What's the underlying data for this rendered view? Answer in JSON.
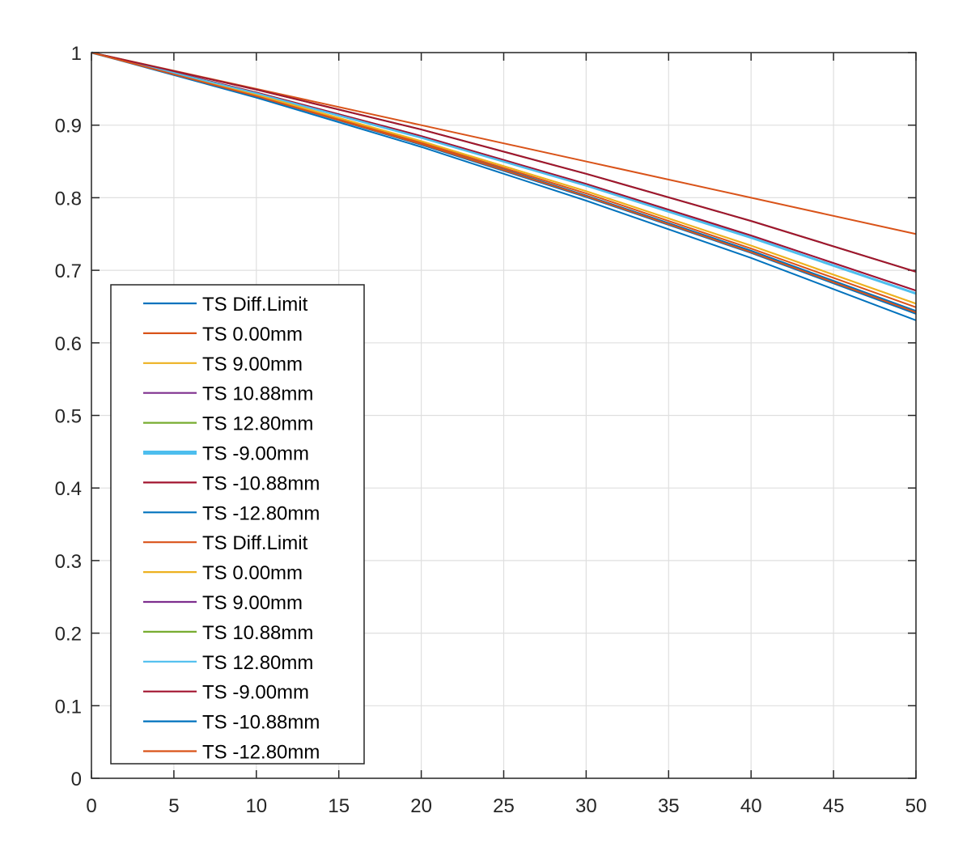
{
  "chart_data": {
    "type": "line",
    "title": "",
    "xlabel": "",
    "ylabel": "",
    "xlim": [
      0,
      50
    ],
    "ylim": [
      0,
      1
    ],
    "grid": true,
    "legend_placement": "bottom-left",
    "x_ticks": [
      "0",
      "5",
      "10",
      "15",
      "20",
      "25",
      "30",
      "35",
      "40",
      "45",
      "50"
    ],
    "y_ticks": [
      "0",
      "0.1",
      "0.2",
      "0.3",
      "0.4",
      "0.5",
      "0.6",
      "0.7",
      "0.8",
      "0.9",
      "1"
    ],
    "x": [
      0,
      10,
      20,
      30,
      40,
      50
    ],
    "series": [
      {
        "name": "TS Diff.Limit",
        "color": "#0072BD",
        "width": 1.5,
        "values": [
          1,
          0.94,
          0.875,
          0.803,
          0.727,
          0.644
        ]
      },
      {
        "name": "TS 0.00mm",
        "color": "#D95319",
        "width": 1.5,
        "values": [
          1,
          0.941,
          0.876,
          0.806,
          0.73,
          0.649
        ]
      },
      {
        "name": "TS 9.00mm",
        "color": "#EDB120",
        "width": 1.5,
        "values": [
          1,
          0.942,
          0.878,
          0.809,
          0.734,
          0.654
        ]
      },
      {
        "name": "TS 10.88mm",
        "color": "#7E2F8E",
        "width": 1.5,
        "values": [
          1,
          0.945,
          0.885,
          0.819,
          0.748,
          0.672
        ]
      },
      {
        "name": "TS 12.80mm",
        "color": "#77AC30",
        "width": 1.5,
        "values": [
          1,
          0.944,
          0.883,
          0.817,
          0.745,
          0.668
        ]
      },
      {
        "name": "TS -9.00mm",
        "color": "#4DBEEE",
        "width": 4,
        "values": [
          1,
          0.944,
          0.883,
          0.817,
          0.745,
          0.668
        ]
      },
      {
        "name": "TS -10.88mm",
        "color": "#A2142F",
        "width": 1.5,
        "values": [
          1,
          0.945,
          0.885,
          0.819,
          0.748,
          0.672
        ]
      },
      {
        "name": "TS -12.80mm",
        "color": "#0072BD",
        "width": 1.5,
        "values": [
          1,
          0.94,
          0.873,
          0.801,
          0.724,
          0.64
        ]
      },
      {
        "name": "TS Diff.Limit",
        "color": "#D95319",
        "width": 1.5,
        "values": [
          1,
          0.95,
          0.9,
          0.85,
          0.8,
          0.75
        ]
      },
      {
        "name": "TS 0.00mm",
        "color": "#EDB120",
        "width": 1.5,
        "values": [
          1,
          0.942,
          0.878,
          0.809,
          0.734,
          0.654
        ]
      },
      {
        "name": "TS 9.00mm",
        "color": "#7E2F8E",
        "width": 1.5,
        "values": [
          1,
          0.949,
          0.894,
          0.833,
          0.768,
          0.698
        ]
      },
      {
        "name": "TS 10.88mm",
        "color": "#77AC30",
        "width": 1.5,
        "values": [
          1,
          0.949,
          0.894,
          0.833,
          0.768,
          0.698
        ]
      },
      {
        "name": "TS 12.80mm",
        "color": "#4DBEEE",
        "width": 1.5,
        "values": [
          1,
          0.944,
          0.883,
          0.817,
          0.745,
          0.668
        ]
      },
      {
        "name": "TS -9.00mm",
        "color": "#A2142F",
        "width": 1.5,
        "values": [
          1,
          0.949,
          0.894,
          0.833,
          0.768,
          0.698
        ]
      },
      {
        "name": "TS -10.88mm",
        "color": "#0072BD",
        "width": 1.5,
        "values": [
          1,
          0.938,
          0.87,
          0.796,
          0.717,
          0.631
        ]
      },
      {
        "name": "TS -12.80mm",
        "color": "#D95319",
        "width": 1.5,
        "values": [
          1,
          0.94,
          0.874,
          0.802,
          0.725,
          0.642
        ]
      }
    ]
  }
}
